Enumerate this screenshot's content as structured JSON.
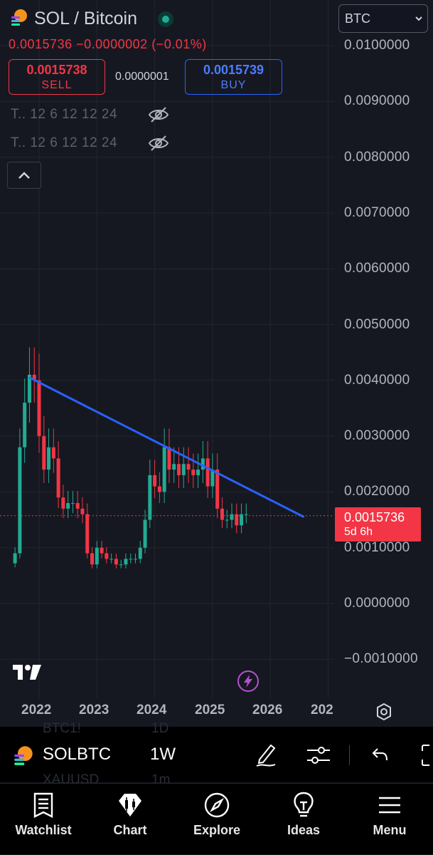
{
  "header": {
    "title": "SOL / Bitcoin",
    "price_change": "0.0015736  −0.0000002 (−0.01%)",
    "sell_price": "0.0015738",
    "sell_label": "SELL",
    "spread": "0.0000001",
    "buy_price": "0.0015739",
    "buy_label": "BUY",
    "indicator_1": "T.. 12 6 12 12 24",
    "indicator_2": "T.. 12 6 12 12 24"
  },
  "currency_select": {
    "value": "BTC"
  },
  "price_axis": {
    "labels": [
      "0.0100000",
      "0.0090000",
      "0.0080000",
      "0.0070000",
      "0.0060000",
      "0.0050000",
      "0.0040000",
      "0.0030000",
      "0.0020000",
      "0.0010000",
      "0.0000000",
      "−0.0010000"
    ],
    "current_price": "0.0015736",
    "countdown": "5d 6h"
  },
  "time_axis": {
    "labels": [
      "2022",
      "2023",
      "2024",
      "2025",
      "2026",
      "202"
    ]
  },
  "chart_data": {
    "type": "candlestick",
    "symbol": "SOLBTC",
    "interval": "1W",
    "ylim": [
      -0.0013,
      0.0106
    ],
    "yticks": [
      0.01,
      0.009,
      0.008,
      0.007,
      0.006,
      0.005,
      0.004,
      0.003,
      0.002,
      0.001,
      0.0,
      -0.001
    ],
    "series_close": [
      {
        "x": "2021-08",
        "y": 0.0009
      },
      {
        "x": "2021-09",
        "y": 0.0028
      },
      {
        "x": "2021-10",
        "y": 0.0036
      },
      {
        "x": "2021-11",
        "y": 0.0041
      },
      {
        "x": "2021-12",
        "y": 0.004
      },
      {
        "x": "2022-01",
        "y": 0.003
      },
      {
        "x": "2022-02",
        "y": 0.0024
      },
      {
        "x": "2022-03",
        "y": 0.0028
      },
      {
        "x": "2022-04",
        "y": 0.0026
      },
      {
        "x": "2022-05",
        "y": 0.0019
      },
      {
        "x": "2022-06",
        "y": 0.0017
      },
      {
        "x": "2022-07",
        "y": 0.0018
      },
      {
        "x": "2022-08",
        "y": 0.0018
      },
      {
        "x": "2022-09",
        "y": 0.0017
      },
      {
        "x": "2022-10",
        "y": 0.0016
      },
      {
        "x": "2022-11",
        "y": 0.0009
      },
      {
        "x": "2022-12",
        "y": 0.0007
      },
      {
        "x": "2023-01",
        "y": 0.001
      },
      {
        "x": "2023-02",
        "y": 0.0009
      },
      {
        "x": "2023-03",
        "y": 0.0008
      },
      {
        "x": "2023-04",
        "y": 0.0008
      },
      {
        "x": "2023-05",
        "y": 0.0007
      },
      {
        "x": "2023-06",
        "y": 0.0007
      },
      {
        "x": "2023-07",
        "y": 0.0008
      },
      {
        "x": "2023-08",
        "y": 0.0008
      },
      {
        "x": "2023-09",
        "y": 0.0008
      },
      {
        "x": "2023-10",
        "y": 0.001
      },
      {
        "x": "2023-11",
        "y": 0.0015
      },
      {
        "x": "2023-12",
        "y": 0.0023
      },
      {
        "x": "2024-01",
        "y": 0.0021
      },
      {
        "x": "2024-02",
        "y": 0.002
      },
      {
        "x": "2024-03",
        "y": 0.0028
      },
      {
        "x": "2024-04",
        "y": 0.0024
      },
      {
        "x": "2024-05",
        "y": 0.0025
      },
      {
        "x": "2024-06",
        "y": 0.0023
      },
      {
        "x": "2024-07",
        "y": 0.0025
      },
      {
        "x": "2024-08",
        "y": 0.0024
      },
      {
        "x": "2024-09",
        "y": 0.0023
      },
      {
        "x": "2024-10",
        "y": 0.0024
      },
      {
        "x": "2024-11",
        "y": 0.0026
      },
      {
        "x": "2024-12",
        "y": 0.0021
      },
      {
        "x": "2025-01",
        "y": 0.0024
      },
      {
        "x": "2025-02",
        "y": 0.0017
      },
      {
        "x": "2025-03",
        "y": 0.0015
      },
      {
        "x": "2025-04",
        "y": 0.0015
      },
      {
        "x": "2025-05",
        "y": 0.0016
      },
      {
        "x": "2025-06",
        "y": 0.0014
      },
      {
        "x": "2025-07",
        "y": 0.0016
      },
      {
        "x": "2025-08",
        "y": 0.0016
      }
    ],
    "trendline": {
      "from": {
        "x": "2021-11",
        "y": 0.00405
      },
      "to": {
        "x": "2026-08",
        "y": 0.00155
      }
    },
    "current_price_line": 0.0015736,
    "colors": {
      "up": "#22ab94",
      "down": "#f23645",
      "trendline": "#2962ff"
    }
  },
  "toolbar": {
    "symbol": "SOLBTC",
    "interval": "1W",
    "ghost_symbol_1": "BTC1!",
    "ghost_interval_1": "1D",
    "ghost_symbol_2": "XAUUSD",
    "ghost_interval_2": "1m"
  },
  "nav": {
    "watchlist": "Watchlist",
    "chart": "Chart",
    "explore": "Explore",
    "ideas": "Ideas",
    "menu": "Menu"
  },
  "icons": [
    "sol-logo-icon",
    "market-status-icon",
    "eye-off-icon",
    "chevron-up-icon",
    "chevron-down-icon",
    "tradingview-logo-icon",
    "lightning-icon",
    "settings-icon",
    "pencil-icon",
    "sliders-icon",
    "undo-icon",
    "fullscreen-icon",
    "watchlist-icon",
    "chart-icon",
    "explore-icon",
    "ideas-icon",
    "menu-icon"
  ]
}
